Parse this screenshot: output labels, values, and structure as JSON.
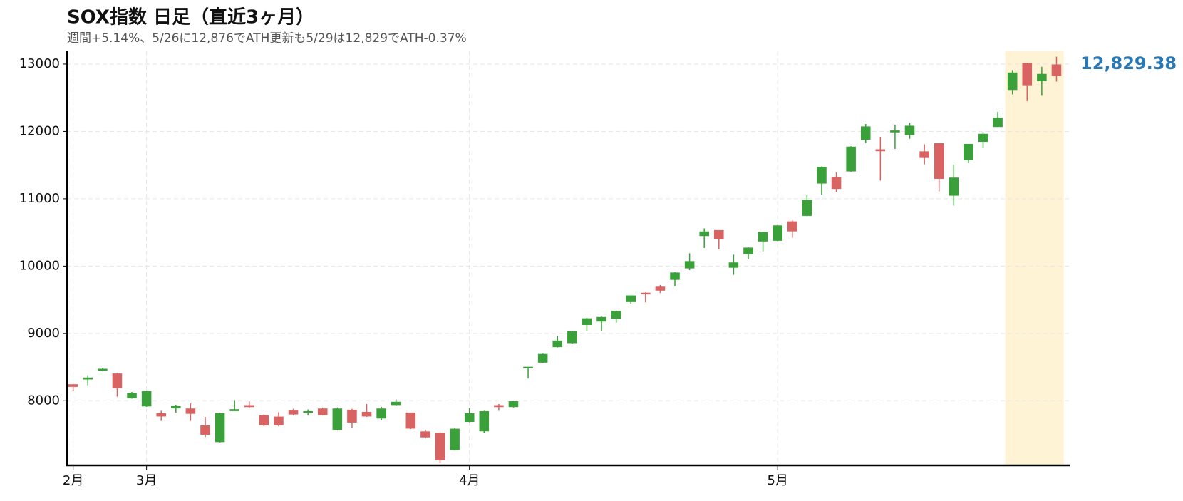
{
  "chart_data": {
    "type": "candlestick",
    "title": "SOX指数 日足（直近3ヶ月）",
    "subtitle": "週間+5.14%、5/26に12,876でATH更新も5/29は12,829でATH-0.37%",
    "categories": [
      "2月",
      null,
      null,
      null,
      null,
      "3月",
      null,
      null,
      null,
      null,
      null,
      null,
      null,
      null,
      null,
      null,
      null,
      null,
      null,
      null,
      null,
      null,
      null,
      null,
      null,
      null,
      null,
      "4月",
      null,
      null,
      null,
      null,
      null,
      null,
      null,
      null,
      null,
      null,
      null,
      null,
      null,
      null,
      null,
      null,
      null,
      null,
      null,
      null,
      "5月",
      null,
      null,
      null,
      null,
      null,
      null,
      null,
      null,
      null,
      null,
      null,
      null,
      null,
      null,
      null,
      null,
      null,
      null,
      null
    ],
    "open": [
      8240,
      8320,
      8450,
      8400,
      8040,
      7920,
      7810,
      7890,
      7880,
      7630,
      7390,
      7850,
      7930,
      7780,
      7760,
      7850,
      7830,
      7880,
      7570,
      7860,
      7830,
      7740,
      7940,
      7820,
      7540,
      7520,
      7270,
      7690,
      7550,
      7930,
      7910,
      8490,
      8570,
      8800,
      8860,
      9130,
      9180,
      9220,
      9470,
      9600,
      9690,
      9800,
      9970,
      10450,
      10530,
      9980,
      10180,
      10370,
      10380,
      10660,
      10750,
      11230,
      11320,
      11410,
      11880,
      11730,
      11990,
      11950,
      11700,
      11820,
      11050,
      11580,
      11850,
      12070,
      12620,
      13010,
      12750,
      12990
    ],
    "high": [
      8250,
      8380,
      8490,
      8410,
      8130,
      8150,
      7850,
      7940,
      7960,
      7760,
      7820,
      8010,
      7990,
      7800,
      7830,
      7880,
      7870,
      7900,
      7900,
      7880,
      7950,
      7910,
      8020,
      7820,
      7570,
      7530,
      7600,
      7890,
      7850,
      7950,
      8000,
      8500,
      8700,
      8960,
      9040,
      9230,
      9250,
      9340,
      9560,
      9610,
      9720,
      9910,
      10190,
      10560,
      10530,
      10170,
      10280,
      10510,
      10610,
      10680,
      11050,
      11480,
      11390,
      11780,
      12110,
      11920,
      12100,
      12130,
      11810,
      11820,
      11510,
      11810,
      11990,
      12290,
      12910,
      13020,
      12960,
      13110
    ],
    "low": [
      8150,
      8230,
      8440,
      8060,
      8030,
      7910,
      7700,
      7820,
      7700,
      7460,
      7380,
      7850,
      7890,
      7620,
      7620,
      7780,
      7780,
      7780,
      7560,
      7600,
      7760,
      7710,
      7920,
      7580,
      7440,
      7070,
      7260,
      7680,
      7520,
      7850,
      7900,
      8330,
      8560,
      8790,
      8850,
      9040,
      9040,
      9160,
      9440,
      9460,
      9600,
      9700,
      9940,
      10270,
      10250,
      9870,
      10100,
      10220,
      10370,
      10420,
      10740,
      11060,
      11100,
      11400,
      11830,
      11270,
      11740,
      11890,
      11510,
      11110,
      10900,
      11530,
      11750,
      12070,
      12550,
      12450,
      12530,
      12740
    ],
    "close": [
      8210,
      8340,
      8470,
      8190,
      8110,
      8140,
      7770,
      7920,
      7810,
      7500,
      7810,
      7870,
      7910,
      7640,
      7640,
      7800,
      7840,
      7790,
      7880,
      7680,
      7770,
      7880,
      7980,
      7590,
      7460,
      7120,
      7580,
      7810,
      7840,
      7910,
      7990,
      8500,
      8690,
      8890,
      9030,
      9220,
      9240,
      9330,
      9560,
      9590,
      9640,
      9900,
      10070,
      10510,
      10400,
      10050,
      10270,
      10500,
      10600,
      10520,
      10980,
      11470,
      11150,
      11770,
      12070,
      11710,
      12010,
      12080,
      11610,
      11300,
      11310,
      11810,
      11960,
      12200,
      12870,
      12690,
      12850,
      12829.38
    ],
    "last_label": "12,829.38",
    "up_color": "#3aa03a",
    "down_color": "#d96262",
    "label_color": "#2878b5",
    "highlight": [
      64,
      67
    ],
    "highlight_color": "#fff3d6",
    "ylim": [
      7040,
      13190
    ],
    "yticks": [
      8000,
      9000,
      10000,
      11000,
      12000,
      13000
    ],
    "grid": true
  }
}
